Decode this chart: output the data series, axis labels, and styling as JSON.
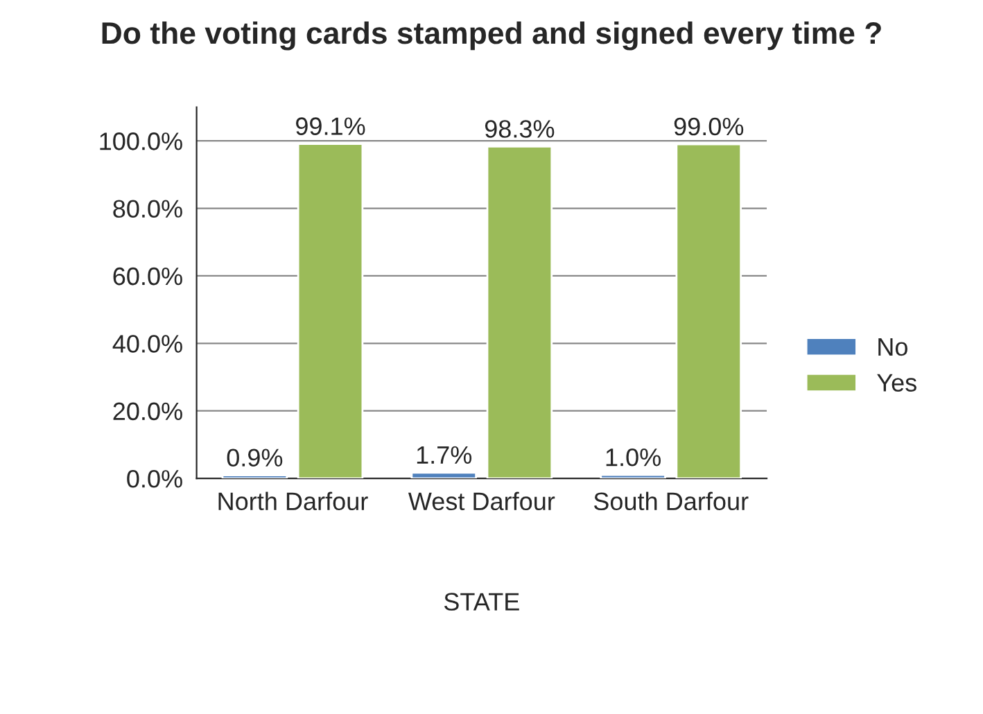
{
  "chart_data": {
    "type": "bar",
    "title": "Do the voting cards stamped and signed every time ?",
    "xlabel": "STATE",
    "categories": [
      "North Darfour",
      "West Darfour",
      "South Darfour"
    ],
    "series": [
      {
        "name": "No",
        "color": "#4f81bd",
        "values": [
          0.9,
          1.7,
          1.0
        ],
        "value_labels": [
          "0.9%",
          "1.7%",
          "1.0%"
        ]
      },
      {
        "name": "Yes",
        "color": "#9bbb59",
        "values": [
          99.1,
          98.3,
          99.0
        ],
        "value_labels": [
          "99.1%",
          "98.3%",
          "99.0%"
        ]
      }
    ],
    "ylim": [
      0,
      110
    ],
    "yticks": [
      {
        "value": 0,
        "label": "0.0%"
      },
      {
        "value": 20,
        "label": "20.0%"
      },
      {
        "value": 40,
        "label": "40.0%"
      },
      {
        "value": 60,
        "label": "60.0%"
      },
      {
        "value": 80,
        "label": "80.0%"
      },
      {
        "value": 100,
        "label": "100.0%"
      }
    ],
    "grid": "y",
    "legend": "right"
  }
}
